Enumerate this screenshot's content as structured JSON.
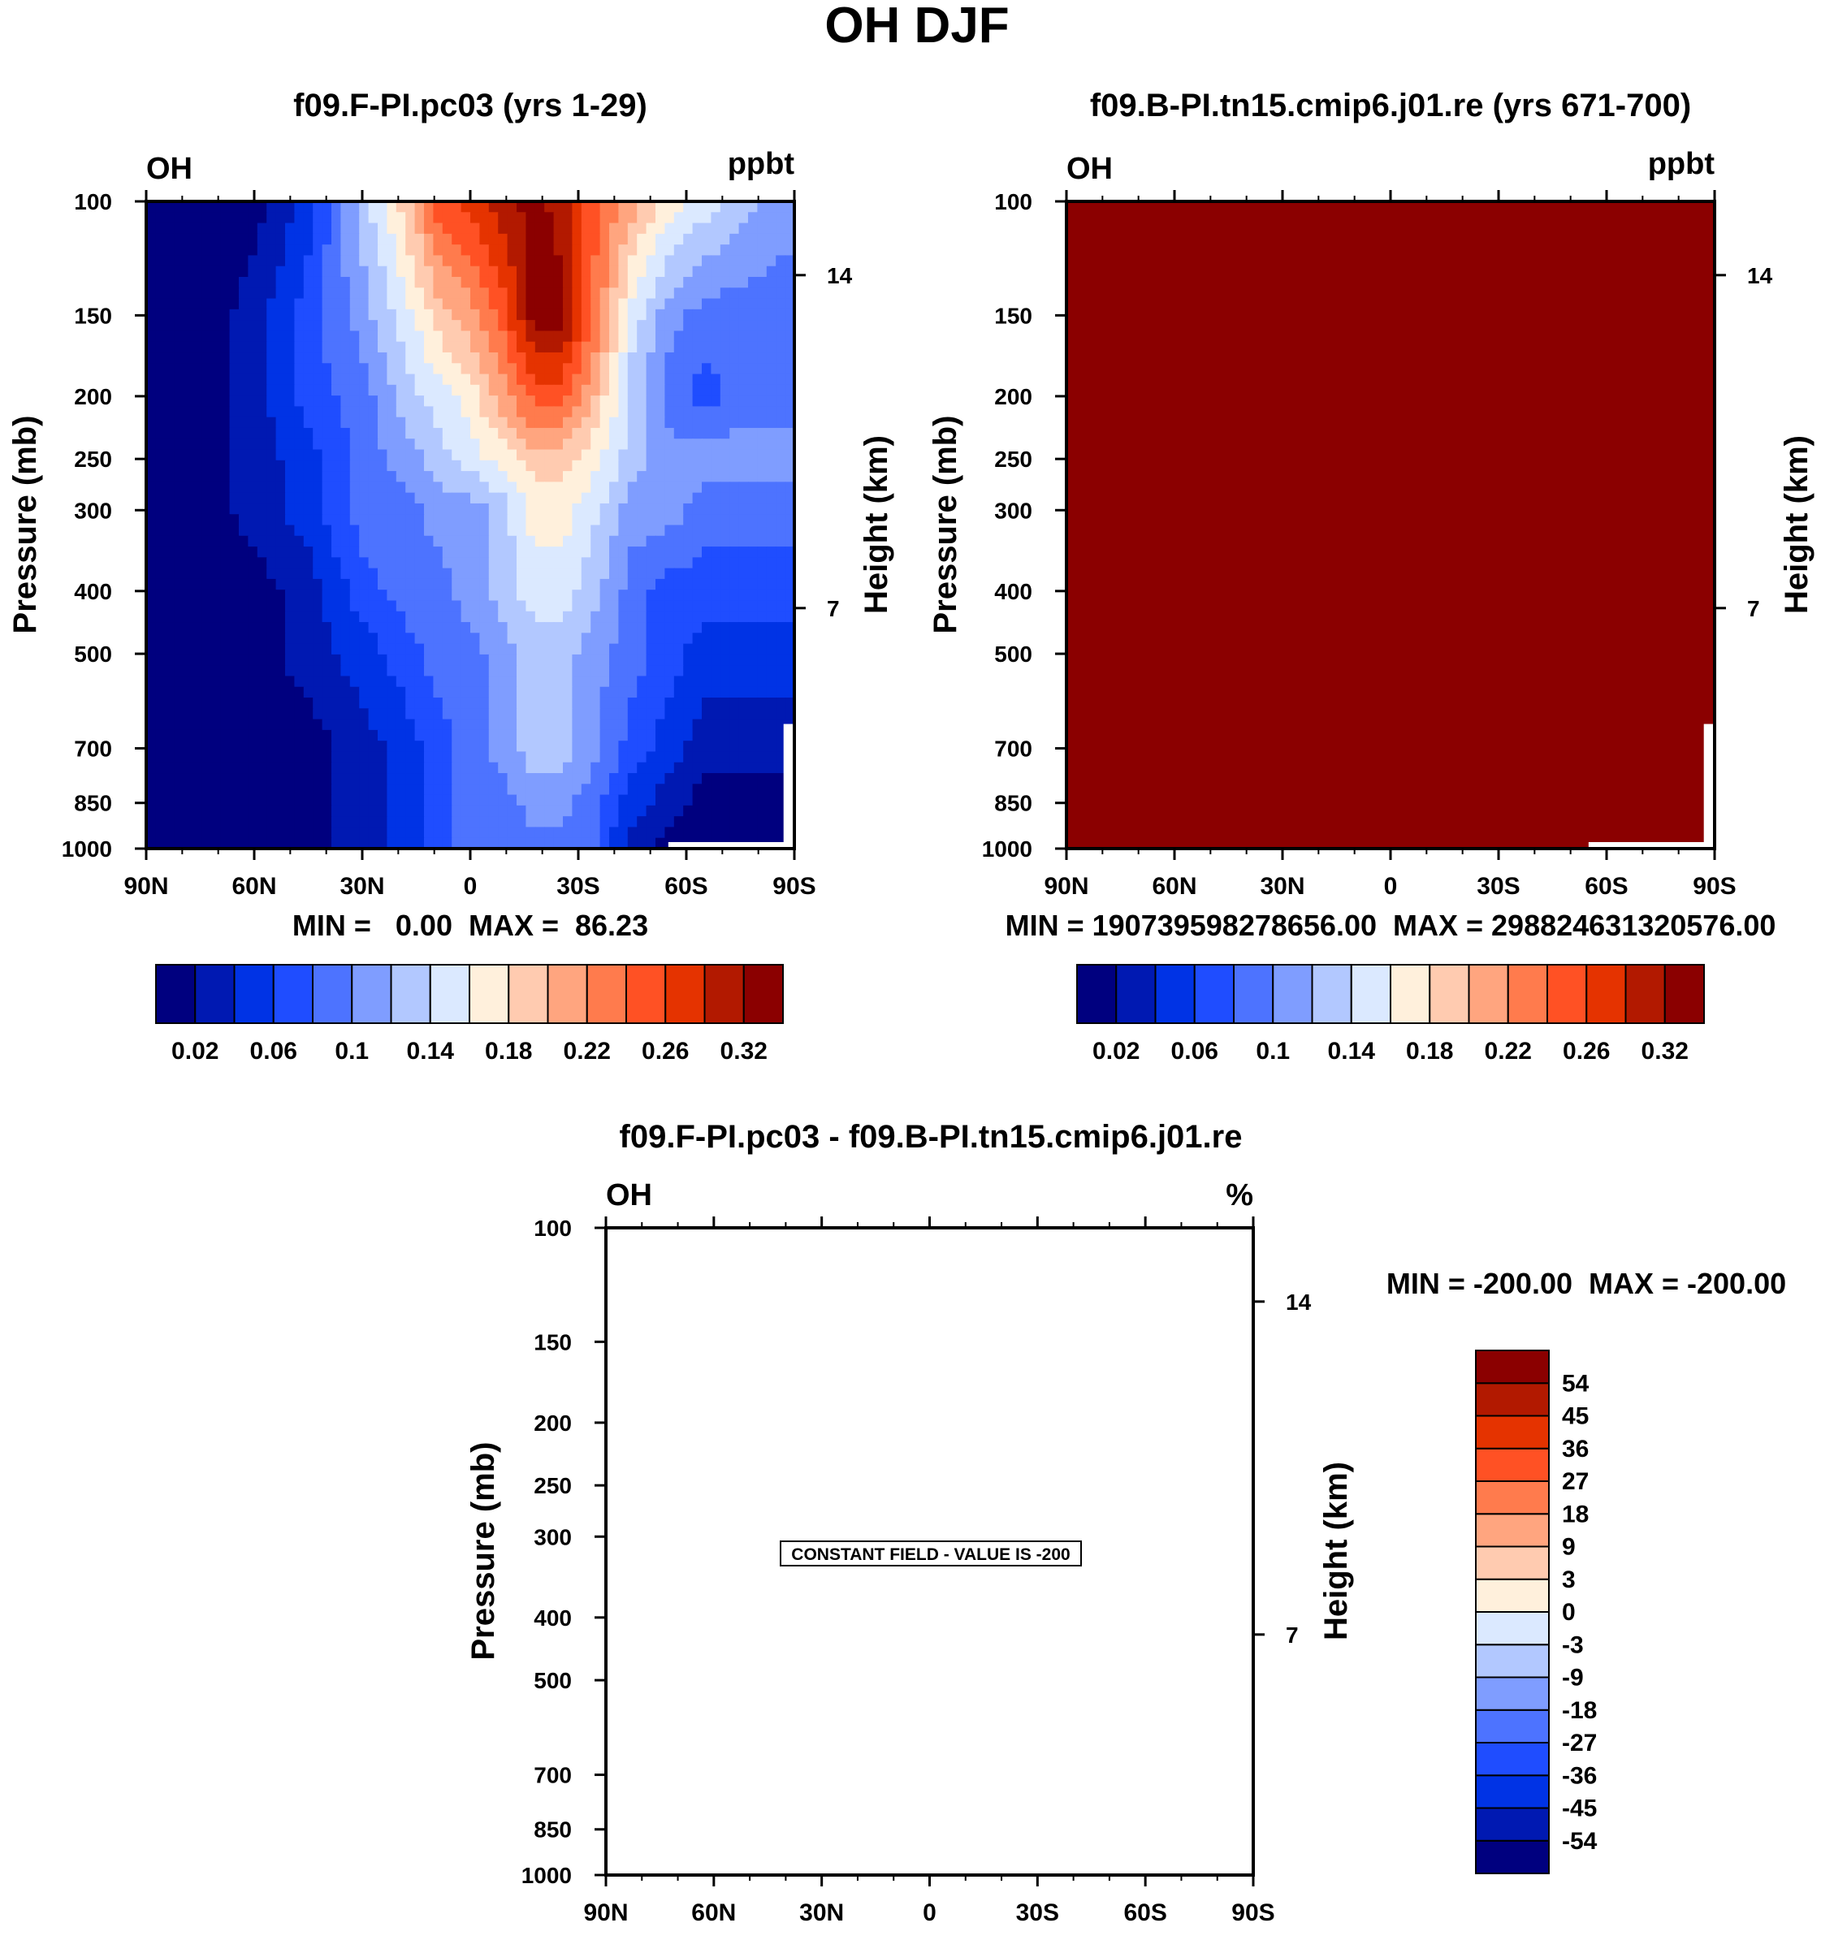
{
  "figure": {
    "title": "OH DJF",
    "colors": {
      "background": "#ffffff",
      "no_data": "#ffffff",
      "constant_fill": "#8b0000"
    }
  },
  "colorbars": {
    "abs": {
      "colors": [
        "#00007f",
        "#0019b2",
        "#0033e5",
        "#1f4dff",
        "#4d73ff",
        "#7f9dff",
        "#b2c8ff",
        "#dbe9ff",
        "#fff0dc",
        "#ffcbb0",
        "#ffa57f",
        "#ff7b4d",
        "#ff5124",
        "#e53300",
        "#b21900",
        "#8b0000"
      ],
      "labels": [
        "0.02",
        "0.06",
        "0.1",
        "0.14",
        "0.18",
        "0.22",
        "0.26",
        "0.32"
      ]
    },
    "diff": {
      "colors": [
        "#00007f",
        "#0019b2",
        "#0033e5",
        "#1f4dff",
        "#4d73ff",
        "#7f9dff",
        "#b2c8ff",
        "#dbe9ff",
        "#fff0dc",
        "#ffcbb0",
        "#ffa57f",
        "#ff7b4d",
        "#ff5124",
        "#e53300",
        "#b21900",
        "#8b0000"
      ],
      "labels": [
        "-54",
        "-45",
        "-36",
        "-27",
        "-18",
        "-9",
        "-3",
        "0",
        "3",
        "9",
        "18",
        "27",
        "36",
        "45",
        "54"
      ]
    }
  },
  "chart_data": [
    {
      "type": "heatmap",
      "id": "panel_a",
      "title": "f09.F-PI.pc03 (yrs 1-29)",
      "variable": "OH",
      "units": "ppbt",
      "xlabel": "",
      "ylabel": "Pressure (mb)",
      "ylabel_right": "Height (km)",
      "x_ticks": [
        "90N",
        "60N",
        "30N",
        "0",
        "30S",
        "60S",
        "90S"
      ],
      "x_values": [
        90,
        60,
        30,
        0,
        -30,
        -60,
        -90
      ],
      "xlim": [
        90,
        -90
      ],
      "y_ticks": [
        100,
        150,
        200,
        250,
        300,
        400,
        500,
        700,
        850,
        1000
      ],
      "ylim": [
        100,
        1000
      ],
      "y_scale": "log",
      "right_ticks": [
        {
          "label": "14",
          "pressure": 130
        },
        {
          "label": "7",
          "pressure": 425
        }
      ],
      "stats": "MIN =   0.00  MAX =  86.23",
      "colorbar": "abs",
      "field": {
        "lat_nodes": [
          90,
          72,
          60,
          45,
          30,
          18,
          9,
          0,
          -9,
          -18,
          -25,
          -33,
          -45,
          -55,
          -65,
          -75,
          -85,
          -90
        ],
        "profiles": [
          {
            "p": 100,
            "v": [
              0,
              0,
              0,
              2,
              6,
              9,
              12,
              13,
              14,
              15,
              14,
              12,
              10,
              8,
              7,
              6,
              5,
              5
            ]
          },
          {
            "p": 150,
            "v": [
              0,
              0,
              1,
              3,
              5,
              7,
              9,
              10,
              12,
              15,
              15,
              12,
              7,
              5,
              4,
              4,
              4,
              4
            ]
          },
          {
            "p": 200,
            "v": [
              0,
              0,
              1,
              3,
              4,
              6,
              7,
              8,
              10,
              12,
              12,
              10,
              6,
              4,
              3,
              4,
              4,
              4
            ]
          },
          {
            "p": 250,
            "v": [
              0,
              0,
              1,
              2,
              4,
              5,
              6,
              7,
              8,
              9,
              9,
              8,
              6,
              5,
              5,
              5,
              5,
              5
            ]
          },
          {
            "p": 300,
            "v": [
              0,
              0,
              1,
              2,
              4,
              4,
              5,
              5,
              6,
              8,
              8,
              7,
              5,
              5,
              4,
              4,
              4,
              4
            ]
          },
          {
            "p": 400,
            "v": [
              0,
              0,
              0,
              1,
              3,
              4,
              4,
              5,
              6,
              7,
              7,
              6,
              4,
              3,
              3,
              3,
              3,
              3
            ]
          },
          {
            "p": 500,
            "v": [
              0,
              0,
              0,
              1,
              2,
              3,
              4,
              4,
              5,
              6,
              6,
              5,
              4,
              3,
              2,
              2,
              2,
              2
            ]
          },
          {
            "p": 700,
            "v": [
              0,
              0,
              0,
              0,
              1,
              2,
              3,
              4,
              5,
              6,
              6,
              5,
              3,
              2,
              1,
              1,
              1,
              1
            ]
          },
          {
            "p": 850,
            "v": [
              0,
              0,
              0,
              0,
              1,
              2,
              3,
              4,
              4,
              5,
              5,
              4,
              2,
              1,
              0,
              0,
              0,
              0
            ]
          },
          {
            "p": 1000,
            "v": [
              0,
              0,
              0,
              0,
              1,
              2,
              3,
              4,
              4,
              4,
              4,
              4,
              1,
              0,
              0,
              0,
              0,
              0
            ]
          }
        ]
      }
    },
    {
      "type": "heatmap",
      "id": "panel_b",
      "title": "f09.B-PI.tn15.cmip6.j01.re (yrs 671-700)",
      "variable": "OH",
      "units": "ppbt",
      "xlabel": "",
      "ylabel": "Pressure (mb)",
      "ylabel_right": "Height (km)",
      "x_ticks": [
        "90N",
        "60N",
        "30N",
        "0",
        "30S",
        "60S",
        "90S"
      ],
      "x_values": [
        90,
        60,
        30,
        0,
        -30,
        -60,
        -90
      ],
      "xlim": [
        90,
        -90
      ],
      "y_ticks": [
        100,
        150,
        200,
        250,
        300,
        400,
        500,
        700,
        850,
        1000
      ],
      "ylim": [
        100,
        1000
      ],
      "y_scale": "log",
      "right_ticks": [
        {
          "label": "14",
          "pressure": 130
        },
        {
          "label": "7",
          "pressure": 425
        }
      ],
      "stats": "MIN = 19073959827865 6.00  MAX = 29882463132057 6.00",
      "colorbar": "abs",
      "field": {
        "constant_level": 15
      }
    },
    {
      "type": "heatmap",
      "id": "panel_c",
      "title": "f09.F-PI.pc03 - f09.B-PI.tn15.cmip6.j01.re",
      "variable": "OH",
      "units": "%",
      "xlabel": "",
      "ylabel": "Pressure (mb)",
      "ylabel_right": "Height (km)",
      "x_ticks": [
        "90N",
        "60N",
        "30N",
        "0",
        "30S",
        "60S",
        "90S"
      ],
      "x_values": [
        90,
        60,
        30,
        0,
        -30,
        -60,
        -90
      ],
      "xlim": [
        90,
        -90
      ],
      "y_ticks": [
        100,
        150,
        200,
        250,
        300,
        400,
        500,
        700,
        850,
        1000
      ],
      "ylim": [
        100,
        1000
      ],
      "y_scale": "log",
      "right_ticks": [
        {
          "label": "14",
          "pressure": 130
        },
        {
          "label": "7",
          "pressure": 425
        }
      ],
      "stats": "MIN = -200.00  MAX = -200.00",
      "annotation": "CONSTANT FIELD - VALUE IS -200",
      "colorbar": "diff"
    }
  ]
}
